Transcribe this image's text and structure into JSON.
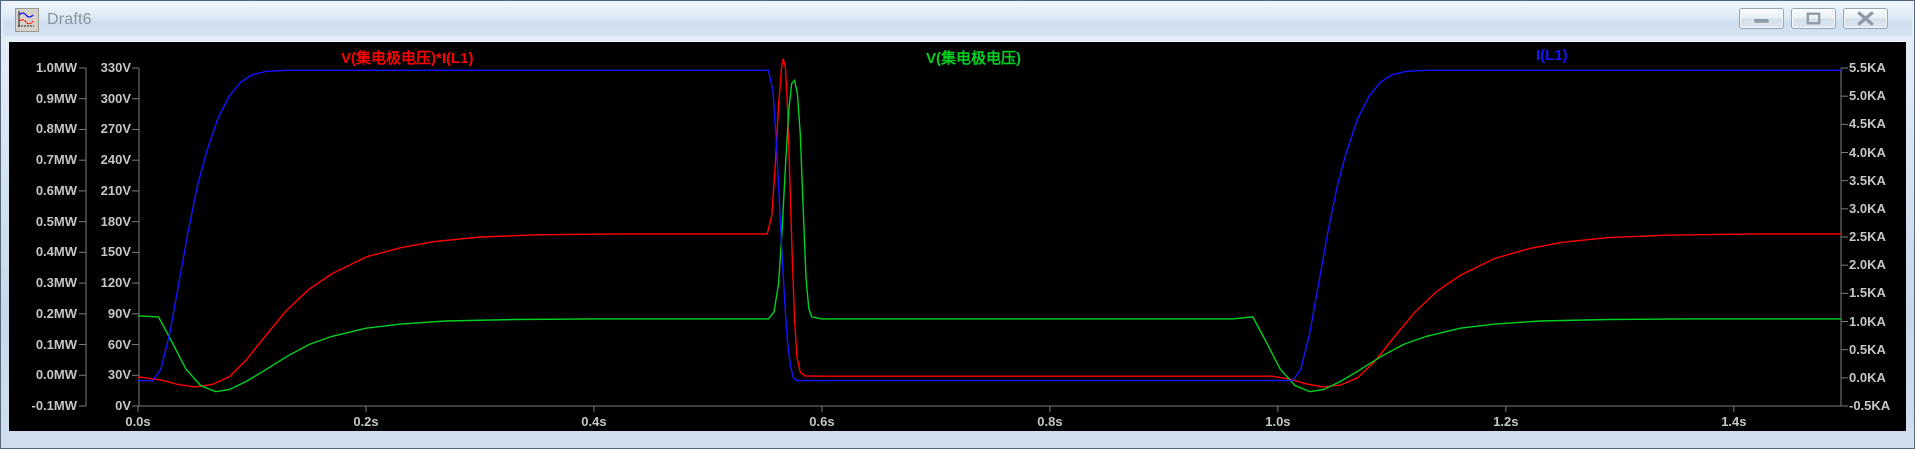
{
  "window": {
    "title": "Draft6",
    "controls": [
      {
        "name": "minimize",
        "icon": "minimize-icon"
      },
      {
        "name": "maximize",
        "icon": "maximize-icon"
      },
      {
        "name": "close",
        "icon": "close-icon"
      }
    ],
    "app_icon": "waveform-plot-icon"
  },
  "colors": {
    "pane_background": "#000000",
    "axis_line": "#7d7d7d",
    "axis_text": "#c6c6c6",
    "trace_power": "#ff0000",
    "trace_voltage": "#00d020",
    "trace_current": "#1414ff",
    "titlebar_text": "#8b959f"
  },
  "chart_data": {
    "type": "line",
    "grid": false,
    "x_axis": {
      "tick_labels": [
        "0.0s",
        "0.2s",
        "0.4s",
        "0.6s",
        "0.8s",
        "1.0s",
        "1.2s",
        "1.4s"
      ],
      "tick_values": [
        0.0,
        0.2,
        0.4,
        0.6,
        0.8,
        1.0,
        1.2,
        1.4
      ],
      "range": [
        0,
        1.494
      ],
      "unit": "s"
    },
    "y_axes": {
      "power": {
        "side": "left-outer",
        "unit": "MW",
        "range": [
          -0.1,
          1.0
        ],
        "step": 0.1,
        "tick_labels": [
          "1.0MW",
          "0.9MW",
          "0.8MW",
          "0.7MW",
          "0.6MW",
          "0.5MW",
          "0.4MW",
          "0.3MW",
          "0.2MW",
          "0.1MW",
          "0.0MW",
          "-0.1MW"
        ]
      },
      "voltage": {
        "side": "left-inner",
        "unit": "V",
        "range": [
          0,
          330
        ],
        "step": 30,
        "tick_labels": [
          "330V",
          "300V",
          "270V",
          "240V",
          "210V",
          "180V",
          "150V",
          "120V",
          "90V",
          "60V",
          "30V",
          "0V"
        ]
      },
      "current": {
        "side": "right",
        "unit": "KA",
        "range": [
          -0.5,
          5.5
        ],
        "step": 0.5,
        "tick_labels": [
          "5.5KA",
          "5.0KA",
          "4.5KA",
          "4.0KA",
          "3.5KA",
          "3.0KA",
          "2.5KA",
          "2.0KA",
          "1.5KA",
          "1.0KA",
          "0.5KA",
          "0.0KA",
          "-0.5KA"
        ]
      }
    },
    "legend_positions_x": [
      332,
      917,
      1527
    ],
    "series": [
      {
        "name": "V(集电极电压)*I(L1)",
        "color": "#ff0000",
        "axis": "power",
        "points": [
          [
            0,
            -0.005
          ],
          [
            0.02,
            -0.015
          ],
          [
            0.035,
            -0.03
          ],
          [
            0.05,
            -0.038
          ],
          [
            0.065,
            -0.03
          ],
          [
            0.08,
            -0.005
          ],
          [
            0.095,
            0.05
          ],
          [
            0.11,
            0.12
          ],
          [
            0.13,
            0.21
          ],
          [
            0.15,
            0.28
          ],
          [
            0.17,
            0.33
          ],
          [
            0.2,
            0.385
          ],
          [
            0.23,
            0.415
          ],
          [
            0.26,
            0.435
          ],
          [
            0.3,
            0.45
          ],
          [
            0.35,
            0.457
          ],
          [
            0.42,
            0.46
          ],
          [
            0.552,
            0.46
          ],
          [
            0.556,
            0.52
          ],
          [
            0.559,
            0.68
          ],
          [
            0.562,
            0.88
          ],
          [
            0.5645,
            1.0
          ],
          [
            0.566,
            1.03
          ],
          [
            0.568,
            1.0
          ],
          [
            0.57,
            0.86
          ],
          [
            0.572,
            0.62
          ],
          [
            0.574,
            0.38
          ],
          [
            0.576,
            0.18
          ],
          [
            0.578,
            0.06
          ],
          [
            0.581,
            0.01
          ],
          [
            0.585,
            -0.002
          ],
          [
            0.6,
            -0.003
          ],
          [
            0.995,
            -0.003
          ],
          [
            1.01,
            -0.012
          ],
          [
            1.025,
            -0.028
          ],
          [
            1.04,
            -0.038
          ],
          [
            1.055,
            -0.032
          ],
          [
            1.07,
            -0.008
          ],
          [
            1.085,
            0.045
          ],
          [
            1.1,
            0.115
          ],
          [
            1.12,
            0.205
          ],
          [
            1.14,
            0.275
          ],
          [
            1.16,
            0.325
          ],
          [
            1.19,
            0.38
          ],
          [
            1.22,
            0.412
          ],
          [
            1.25,
            0.433
          ],
          [
            1.29,
            0.448
          ],
          [
            1.34,
            0.456
          ],
          [
            1.42,
            0.46
          ],
          [
            1.494,
            0.46
          ]
        ]
      },
      {
        "name": "V(集电极电压)",
        "color": "#00d020",
        "axis": "voltage",
        "points": [
          [
            0,
            88
          ],
          [
            0.018,
            87
          ],
          [
            0.03,
            62
          ],
          [
            0.042,
            36
          ],
          [
            0.055,
            20
          ],
          [
            0.068,
            14
          ],
          [
            0.08,
            16
          ],
          [
            0.095,
            24
          ],
          [
            0.11,
            34
          ],
          [
            0.13,
            48
          ],
          [
            0.15,
            60
          ],
          [
            0.17,
            68
          ],
          [
            0.2,
            76
          ],
          [
            0.23,
            80
          ],
          [
            0.27,
            83
          ],
          [
            0.33,
            84.5
          ],
          [
            0.4,
            85
          ],
          [
            0.553,
            85
          ],
          [
            0.558,
            92
          ],
          [
            0.562,
            120
          ],
          [
            0.565,
            170
          ],
          [
            0.568,
            235
          ],
          [
            0.571,
            290
          ],
          [
            0.5735,
            315
          ],
          [
            0.576,
            318
          ],
          [
            0.5785,
            305
          ],
          [
            0.581,
            265
          ],
          [
            0.5835,
            195
          ],
          [
            0.586,
            125
          ],
          [
            0.5885,
            95
          ],
          [
            0.591,
            87
          ],
          [
            0.6,
            85
          ],
          [
            0.96,
            85
          ],
          [
            0.978,
            87
          ],
          [
            0.99,
            62
          ],
          [
            1.002,
            36
          ],
          [
            1.015,
            20
          ],
          [
            1.028,
            14
          ],
          [
            1.04,
            16
          ],
          [
            1.055,
            24
          ],
          [
            1.07,
            34
          ],
          [
            1.09,
            48
          ],
          [
            1.11,
            60
          ],
          [
            1.13,
            68
          ],
          [
            1.16,
            76
          ],
          [
            1.19,
            80
          ],
          [
            1.23,
            83
          ],
          [
            1.29,
            84.5
          ],
          [
            1.36,
            85
          ],
          [
            1.494,
            85
          ]
        ]
      },
      {
        "name": "I(L1)",
        "color": "#1414ff",
        "axis": "current",
        "points": [
          [
            0,
            -0.05
          ],
          [
            0.013,
            -0.05
          ],
          [
            0.02,
            0.15
          ],
          [
            0.028,
            0.8
          ],
          [
            0.036,
            1.7
          ],
          [
            0.044,
            2.6
          ],
          [
            0.052,
            3.4
          ],
          [
            0.06,
            4.0
          ],
          [
            0.07,
            4.6
          ],
          [
            0.08,
            5.0
          ],
          [
            0.09,
            5.25
          ],
          [
            0.1,
            5.38
          ],
          [
            0.112,
            5.44
          ],
          [
            0.13,
            5.46
          ],
          [
            0.553,
            5.46
          ],
          [
            0.557,
            5.1
          ],
          [
            0.56,
            4.2
          ],
          [
            0.5625,
            3.2
          ],
          [
            0.565,
            2.2
          ],
          [
            0.5675,
            1.3
          ],
          [
            0.57,
            0.6
          ],
          [
            0.5725,
            0.2
          ],
          [
            0.575,
            0.0
          ],
          [
            0.578,
            -0.05
          ],
          [
            0.6,
            -0.05
          ],
          [
            1.005,
            -0.05
          ],
          [
            1.013,
            -0.05
          ],
          [
            1.02,
            0.15
          ],
          [
            1.028,
            0.8
          ],
          [
            1.036,
            1.7
          ],
          [
            1.044,
            2.6
          ],
          [
            1.052,
            3.4
          ],
          [
            1.06,
            4.0
          ],
          [
            1.07,
            4.6
          ],
          [
            1.08,
            5.0
          ],
          [
            1.09,
            5.25
          ],
          [
            1.1,
            5.38
          ],
          [
            1.112,
            5.44
          ],
          [
            1.13,
            5.46
          ],
          [
            1.494,
            5.46
          ]
        ]
      }
    ]
  }
}
